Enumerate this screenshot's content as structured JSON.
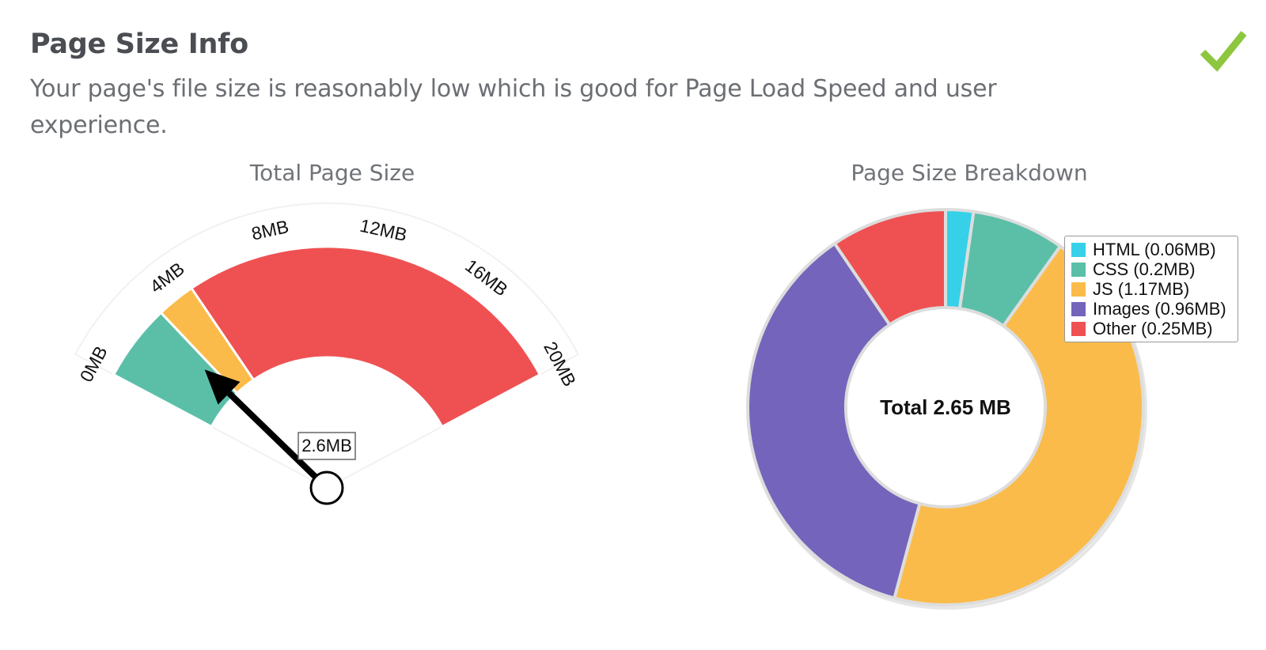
{
  "section": {
    "title": "Page Size Info",
    "description": "Your page's file size is reasonably low which is good for Page Load Speed and user experience.",
    "status_icon": "checkmark-icon",
    "status_color": "#8dc63f"
  },
  "chart_data": [
    {
      "type": "gauge",
      "title": "Total Page Size",
      "min": 0,
      "max": 20,
      "unit": "MB",
      "tick_labels": [
        "0MB",
        "4MB",
        "8MB",
        "12MB",
        "16MB",
        "20MB"
      ],
      "tick_values": [
        0,
        4,
        8,
        12,
        16,
        20
      ],
      "bands": [
        {
          "from": 0,
          "to": 3,
          "color": "#5bbfa8"
        },
        {
          "from": 3,
          "to": 4.5,
          "color": "#fbbb4a"
        },
        {
          "from": 4.5,
          "to": 20,
          "color": "#ef5152"
        }
      ],
      "value": 2.6,
      "value_label": "2.6MB"
    },
    {
      "type": "pie",
      "variant": "donut",
      "title": "Page Size Breakdown",
      "center_label": "Total 2.65 MB",
      "categories": [
        "HTML (0.06MB)",
        "CSS (0.2MB)",
        "JS (1.17MB)",
        "Images (0.96MB)",
        "Other (0.25MB)"
      ],
      "values": [
        0.06,
        0.2,
        1.17,
        0.96,
        0.25
      ],
      "colors": [
        "#36d1e8",
        "#5bbfa8",
        "#fbbb4a",
        "#7564bb",
        "#ef5152"
      ],
      "legend_position": "top-right"
    }
  ]
}
